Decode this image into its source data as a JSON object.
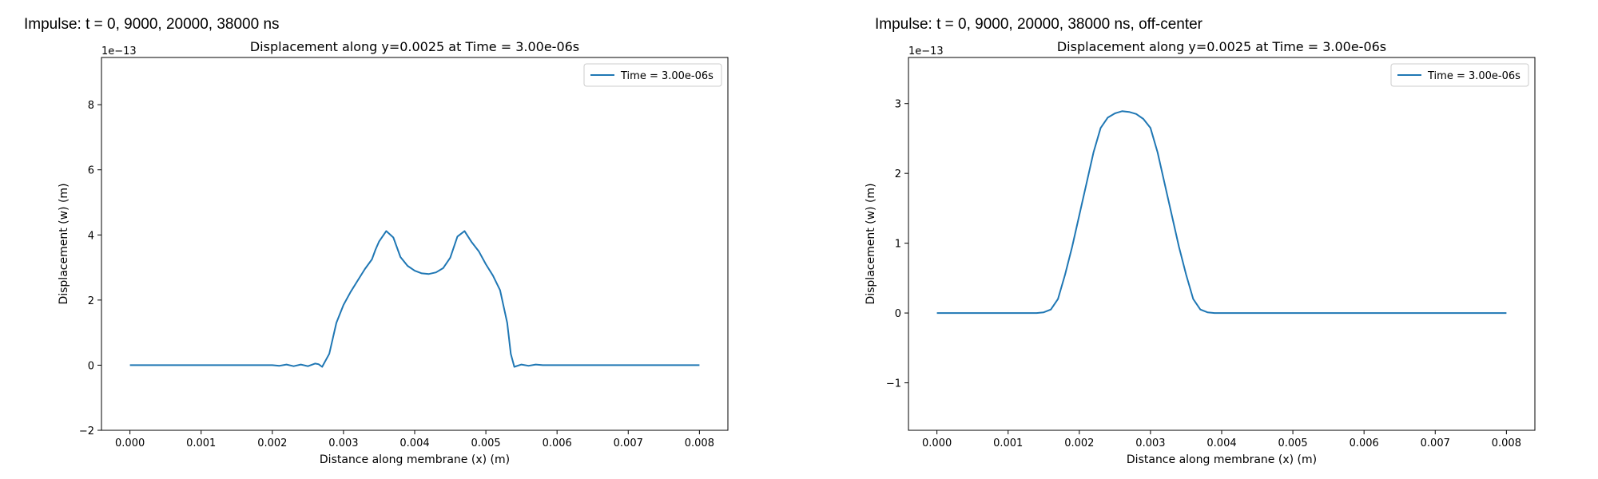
{
  "figures": [
    {
      "suptitle": "Impulse: t = 0, 9000, 20000, 38000 ns"
    },
    {
      "suptitle": "Impulse: t = 0, 9000, 20000, 38000 ns, off-center"
    }
  ],
  "chart_data": [
    {
      "type": "line",
      "title": "Displacement along y=0.0025 at Time = 3.00e-06s",
      "xlabel": "Distance along membrane (x) (m)",
      "ylabel": "Displacement (w) (m)",
      "y_offset_text": "1e−13",
      "y_scale": 1e-13,
      "xlim": [
        -0.0004,
        0.0084
      ],
      "ylim": [
        -2,
        9.45
      ],
      "x_ticks": [
        0.0,
        0.001,
        0.002,
        0.003,
        0.004,
        0.005,
        0.006,
        0.007,
        0.008
      ],
      "x_tick_labels": [
        "0.000",
        "0.001",
        "0.002",
        "0.003",
        "0.004",
        "0.005",
        "0.006",
        "0.007",
        "0.008"
      ],
      "y_ticks": [
        -2,
        0,
        2,
        4,
        6,
        8
      ],
      "y_tick_labels": [
        "−2",
        "0",
        "2",
        "4",
        "6",
        "8"
      ],
      "grid": false,
      "legend_position": "top-right",
      "color": "#1f77b4",
      "series": [
        {
          "name": "Time = 3.00e-06s",
          "x": [
            0.0,
            0.0005,
            0.001,
            0.0015,
            0.002,
            0.0021,
            0.0022,
            0.0023,
            0.0024,
            0.0025,
            0.0026,
            0.00265,
            0.0027,
            0.0028,
            0.0029,
            0.003,
            0.0031,
            0.0032,
            0.0033,
            0.0034,
            0.00345,
            0.0035,
            0.0036,
            0.0037,
            0.0038,
            0.0039,
            0.004,
            0.0041,
            0.0042,
            0.0043,
            0.0044,
            0.0045,
            0.0046,
            0.0047,
            0.0048,
            0.0049,
            0.005,
            0.0051,
            0.0052,
            0.0053,
            0.00535,
            0.0054,
            0.0055,
            0.0056,
            0.0057,
            0.0058,
            0.006,
            0.007,
            0.008
          ],
          "y": [
            0,
            0,
            0,
            0,
            0,
            -0.02,
            0.02,
            -0.03,
            0.02,
            -0.03,
            0.05,
            0.03,
            -0.05,
            0.35,
            1.3,
            1.85,
            2.25,
            2.6,
            2.95,
            3.25,
            3.55,
            3.8,
            4.12,
            3.92,
            3.32,
            3.05,
            2.9,
            2.82,
            2.8,
            2.85,
            2.98,
            3.3,
            3.95,
            4.12,
            3.78,
            3.5,
            3.1,
            2.75,
            2.3,
            1.3,
            0.35,
            -0.05,
            0.02,
            -0.02,
            0.02,
            0,
            0,
            0,
            0
          ]
        }
      ]
    },
    {
      "type": "line",
      "title": "Displacement along y=0.0025 at Time = 3.00e-06s",
      "xlabel": "Distance along membrane (x) (m)",
      "ylabel": "Displacement (w) (m)",
      "y_offset_text": "1e−13",
      "y_scale": 1e-13,
      "xlim": [
        -0.0004,
        0.0084
      ],
      "ylim": [
        -1.68,
        3.66
      ],
      "x_ticks": [
        0.0,
        0.001,
        0.002,
        0.003,
        0.004,
        0.005,
        0.006,
        0.007,
        0.008
      ],
      "x_tick_labels": [
        "0.000",
        "0.001",
        "0.002",
        "0.003",
        "0.004",
        "0.005",
        "0.006",
        "0.007",
        "0.008"
      ],
      "y_ticks": [
        -1,
        0,
        1,
        2,
        3
      ],
      "y_tick_labels": [
        "−1",
        "0",
        "1",
        "2",
        "3"
      ],
      "grid": false,
      "legend_position": "top-right",
      "color": "#1f77b4",
      "series": [
        {
          "name": "Time = 3.00e-06s",
          "x": [
            0.0,
            0.0005,
            0.001,
            0.0014,
            0.0015,
            0.0016,
            0.0017,
            0.0018,
            0.0019,
            0.002,
            0.0021,
            0.0022,
            0.0023,
            0.0024,
            0.0025,
            0.0026,
            0.0027,
            0.0028,
            0.0029,
            0.003,
            0.0031,
            0.0032,
            0.0033,
            0.0034,
            0.0035,
            0.0036,
            0.0037,
            0.0038,
            0.0039,
            0.004,
            0.005,
            0.006,
            0.007,
            0.008
          ],
          "y": [
            0,
            0,
            0,
            0,
            0.01,
            0.05,
            0.2,
            0.55,
            0.95,
            1.4,
            1.85,
            2.3,
            2.65,
            2.8,
            2.86,
            2.89,
            2.88,
            2.85,
            2.78,
            2.65,
            2.3,
            1.85,
            1.4,
            0.95,
            0.55,
            0.2,
            0.05,
            0.01,
            0,
            0,
            0,
            0,
            0,
            0
          ]
        }
      ]
    }
  ]
}
